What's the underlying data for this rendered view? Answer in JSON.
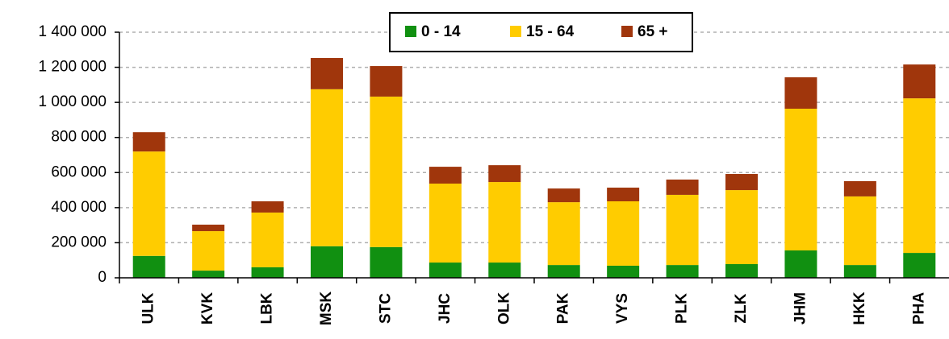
{
  "chart_data": {
    "type": "stacked_bar",
    "categories": [
      "ULK",
      "KVK",
      "LBK",
      "MSK",
      "STC",
      "JHC",
      "OLK",
      "PAK",
      "VYS",
      "PLK",
      "ZLK",
      "JHM",
      "HKK",
      "PHA"
    ],
    "series": [
      {
        "name": "0 - 14",
        "color": "#119011",
        "values": [
          125000,
          41000,
          60000,
          180000,
          175000,
          87000,
          87000,
          73000,
          69000,
          73000,
          78000,
          156000,
          73000,
          142000
        ]
      },
      {
        "name": "15 - 64",
        "color": "#ffcc00",
        "values": [
          595000,
          225000,
          312000,
          895000,
          858000,
          450000,
          459000,
          358000,
          367000,
          400000,
          422000,
          808000,
          391000,
          881000
        ]
      },
      {
        "name": "65 +",
        "color": "#a0360c",
        "values": [
          110000,
          37000,
          64000,
          178000,
          174000,
          96000,
          96000,
          78000,
          78000,
          87000,
          92000,
          179000,
          87000,
          193000
        ]
      }
    ],
    "ylim": [
      0,
      1400000
    ],
    "yticks": [
      0,
      {
        "value": 200000,
        "label": "200 000"
      },
      {
        "value": 400000,
        "label": "400 000"
      },
      {
        "value": 600000,
        "label": "600 000"
      },
      {
        "value": 800000,
        "label": "800 000"
      },
      {
        "value": 1000000,
        "label": "1 000 000"
      },
      {
        "value": 1200000,
        "label": "1 200 000"
      },
      {
        "value": 1400000,
        "label": "1 400 000"
      }
    ],
    "grid": true,
    "legend": "top"
  }
}
